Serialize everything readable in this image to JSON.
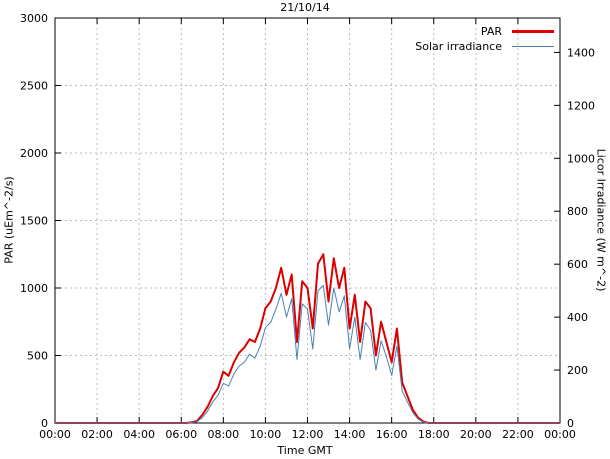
{
  "chart": {
    "title": "21/10/14",
    "xlabel": "Time GMT",
    "ylabel": "PAR (uEm^-2/s)",
    "y2label": "Licor Irradiance (W m^-2)",
    "colors": {
      "par": "#dd0000",
      "solar": "#4682b4",
      "grid": "#bbbbbb",
      "axis": "#000000",
      "text": "#000000"
    },
    "legend": [
      {
        "label": "PAR",
        "color": "#dd0000",
        "line_width": 3
      },
      {
        "label": "Solar irradiance",
        "color": "#4682b4",
        "line_width": 1
      }
    ]
  },
  "chart_data": {
    "type": "line",
    "title": "21/10/14",
    "xlabel": "Time GMT",
    "ylabel": "PAR (uEm^-2/s)",
    "y2label": "Licor Irradiance (W m^-2)",
    "grid": true,
    "legend_position": "top-right",
    "xlim": [
      0,
      24
    ],
    "ylim": [
      0,
      3000
    ],
    "y2lim": [
      0,
      1530
    ],
    "x_ticks": [
      0,
      2,
      4,
      6,
      8,
      10,
      12,
      14,
      16,
      18,
      20,
      22,
      24
    ],
    "x_tick_labels": [
      "00:00",
      "02:00",
      "04:00",
      "06:00",
      "08:00",
      "10:00",
      "12:00",
      "14:00",
      "16:00",
      "18:00",
      "20:00",
      "22:00",
      "00:00"
    ],
    "y_ticks": [
      0,
      500,
      1000,
      1500,
      2000,
      2500,
      3000
    ],
    "y_tick_labels": [
      "0",
      "500",
      "1000",
      "1500",
      "2000",
      "2500",
      "3000"
    ],
    "y2_ticks": [
      0,
      200,
      400,
      600,
      800,
      1000,
      1200,
      1400
    ],
    "y2_tick_labels": [
      "0",
      "200",
      "400",
      "600",
      "800",
      "1000",
      "1200",
      "1400"
    ],
    "x": [
      0,
      6,
      6.25,
      6.5,
      6.75,
      7,
      7.25,
      7.5,
      7.75,
      8,
      8.25,
      8.5,
      8.75,
      9,
      9.25,
      9.5,
      9.75,
      10,
      10.25,
      10.5,
      10.75,
      11,
      11.25,
      11.5,
      11.75,
      12,
      12.25,
      12.5,
      12.75,
      13,
      13.25,
      13.5,
      13.75,
      14,
      14.25,
      14.5,
      14.75,
      15,
      15.25,
      15.5,
      15.75,
      16,
      16.25,
      16.5,
      16.75,
      17,
      17.25,
      17.5,
      17.75,
      18,
      24
    ],
    "series": [
      {
        "name": "PAR",
        "axis": "y1",
        "color": "#dd0000",
        "width": 2,
        "values": [
          0,
          0,
          0,
          5,
          15,
          60,
          120,
          200,
          260,
          380,
          350,
          450,
          520,
          560,
          620,
          600,
          700,
          850,
          900,
          1000,
          1150,
          950,
          1100,
          600,
          1050,
          1000,
          700,
          1180,
          1250,
          900,
          1220,
          1000,
          1150,
          700,
          950,
          600,
          900,
          850,
          500,
          750,
          600,
          450,
          700,
          300,
          200,
          100,
          40,
          10,
          0,
          0,
          0
        ]
      },
      {
        "name": "Solar irradiance",
        "axis": "y2",
        "color": "#4682b4",
        "width": 1,
        "values": [
          0,
          0,
          0,
          2,
          5,
          20,
          45,
          80,
          105,
          150,
          140,
          185,
          215,
          230,
          260,
          245,
          290,
          360,
          380,
          430,
          490,
          400,
          470,
          240,
          450,
          430,
          280,
          500,
          520,
          370,
          510,
          420,
          480,
          280,
          400,
          240,
          380,
          350,
          200,
          310,
          250,
          180,
          290,
          120,
          80,
          40,
          15,
          3,
          0,
          0,
          0
        ]
      }
    ]
  }
}
